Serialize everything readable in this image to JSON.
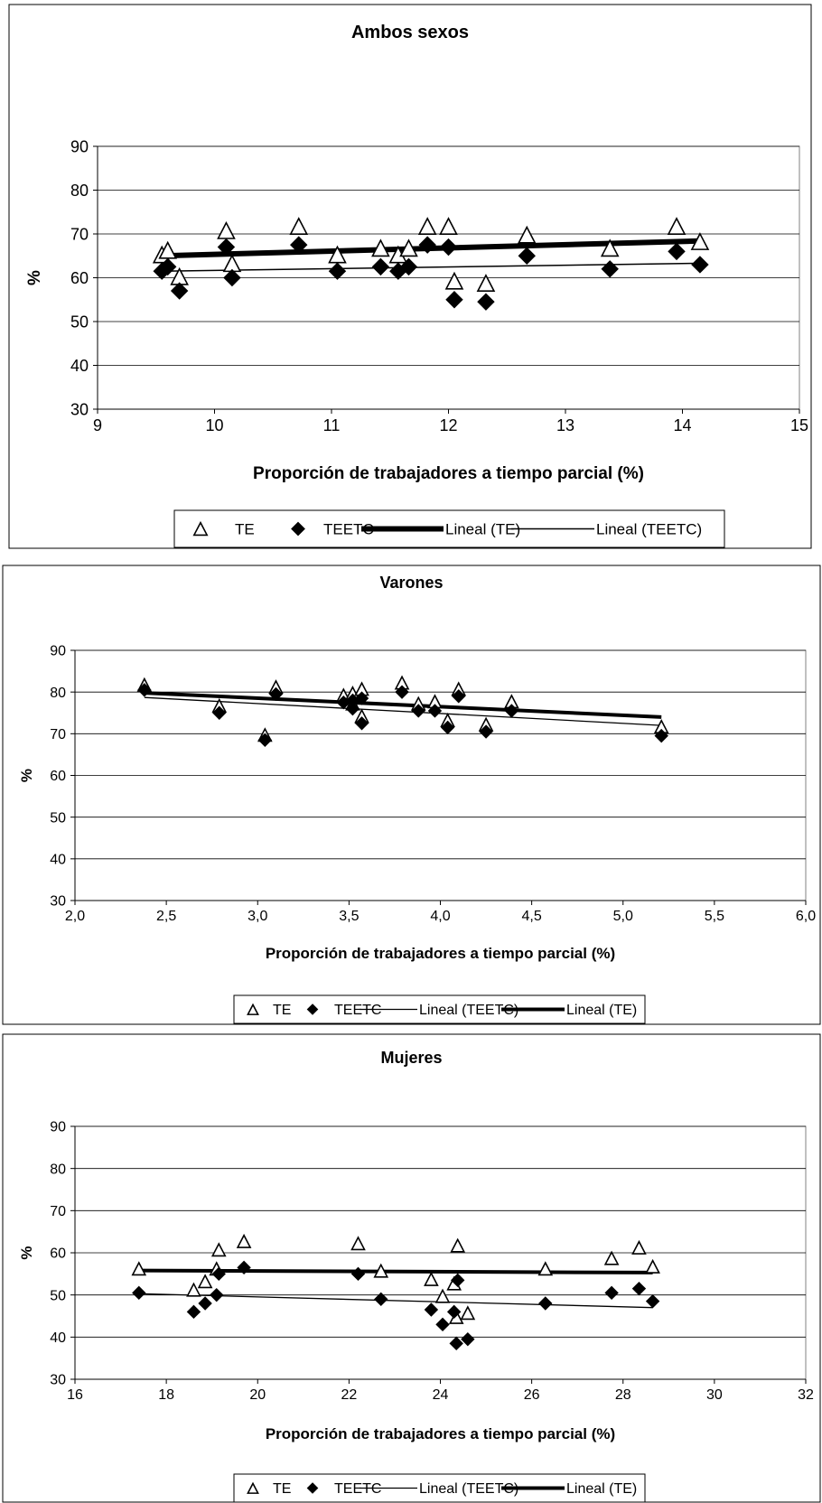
{
  "chart_data": [
    {
      "type": "scatter",
      "title": "Ambos sexos",
      "xlabel": "Proporción de trabajadores a tiempo parcial (%)",
      "ylabel": "%",
      "xlim": [
        9,
        15
      ],
      "ylim": [
        30,
        90
      ],
      "x_ticks": [
        "9",
        "10",
        "11",
        "12",
        "13",
        "14",
        "15"
      ],
      "y_ticks": [
        "30",
        "40",
        "50",
        "60",
        "70",
        "80",
        "90"
      ],
      "grid": true,
      "legend_position": "bottom",
      "series": [
        {
          "name": "TE",
          "marker": "triangle",
          "points": [
            [
              9.55,
              65.0
            ],
            [
              9.6,
              66.0
            ],
            [
              9.7,
              60.0
            ],
            [
              10.1,
              70.5
            ],
            [
              10.15,
              63.0
            ],
            [
              10.72,
              71.5
            ],
            [
              11.05,
              65.0
            ],
            [
              11.42,
              66.5
            ],
            [
              11.57,
              65.0
            ],
            [
              11.66,
              66.5
            ],
            [
              11.82,
              71.5
            ],
            [
              12.0,
              71.5
            ],
            [
              12.05,
              59.0
            ],
            [
              12.32,
              58.5
            ],
            [
              12.67,
              69.5
            ],
            [
              13.38,
              66.5
            ],
            [
              13.95,
              71.5
            ],
            [
              14.15,
              68.0
            ]
          ]
        },
        {
          "name": "TEETC",
          "marker": "diamond",
          "points": [
            [
              9.55,
              61.5
            ],
            [
              9.6,
              62.5
            ],
            [
              9.7,
              57.0
            ],
            [
              10.1,
              67.0
            ],
            [
              10.15,
              60.0
            ],
            [
              10.72,
              67.5
            ],
            [
              11.05,
              61.5
            ],
            [
              11.42,
              62.5
            ],
            [
              11.57,
              61.5
            ],
            [
              11.66,
              62.5
            ],
            [
              11.82,
              67.5
            ],
            [
              12.0,
              67.0
            ],
            [
              12.05,
              55.0
            ],
            [
              12.32,
              54.5
            ],
            [
              12.67,
              65.0
            ],
            [
              13.38,
              62.0
            ],
            [
              13.95,
              66.0
            ],
            [
              14.15,
              63.0
            ]
          ]
        },
        {
          "name": "Lineal (TE)",
          "type": "line",
          "weight": "thick",
          "points": [
            [
              9.55,
              65.0
            ],
            [
              14.15,
              68.4
            ]
          ]
        },
        {
          "name": "Lineal (TEETC)",
          "type": "line",
          "weight": "thin",
          "points": [
            [
              9.55,
              61.5
            ],
            [
              14.15,
              63.3
            ]
          ]
        }
      ],
      "legend": [
        "TE",
        "TEETC",
        "Lineal (TE)",
        "Lineal (TEETC)"
      ]
    },
    {
      "type": "scatter",
      "title": "Varones",
      "xlabel": "Proporción de trabajadores a tiempo parcial (%)",
      "ylabel": "%",
      "xlim": [
        2.0,
        6.0
      ],
      "ylim": [
        30,
        90
      ],
      "x_ticks": [
        "2,0",
        "2,5",
        "3,0",
        "3,5",
        "4,0",
        "4,5",
        "5,0",
        "5,5",
        "6,0"
      ],
      "y_ticks": [
        "30",
        "40",
        "50",
        "60",
        "70",
        "80",
        "90"
      ],
      "grid": true,
      "legend_position": "bottom",
      "series": [
        {
          "name": "TE",
          "marker": "triangle",
          "points": [
            [
              2.38,
              81.5
            ],
            [
              2.79,
              76.5
            ],
            [
              3.04,
              69.5
            ],
            [
              3.1,
              81.0
            ],
            [
              3.47,
              79.0
            ],
            [
              3.52,
              79.5
            ],
            [
              3.52,
              77.0
            ],
            [
              3.57,
              80.5
            ],
            [
              3.57,
              74.0
            ],
            [
              3.79,
              82.0
            ],
            [
              3.88,
              77.0
            ],
            [
              3.97,
              77.5
            ],
            [
              4.04,
              73.0
            ],
            [
              4.1,
              80.5
            ],
            [
              4.25,
              72.0
            ],
            [
              4.39,
              77.5
            ],
            [
              5.21,
              71.5
            ]
          ]
        },
        {
          "name": "TEETC",
          "marker": "diamond",
          "points": [
            [
              2.38,
              80.5
            ],
            [
              2.79,
              75.0
            ],
            [
              3.04,
              68.5
            ],
            [
              3.1,
              79.5
            ],
            [
              3.47,
              77.5
            ],
            [
              3.52,
              78.0
            ],
            [
              3.52,
              76.0
            ],
            [
              3.57,
              78.5
            ],
            [
              3.57,
              72.5
            ],
            [
              3.79,
              80.0
            ],
            [
              3.88,
              75.5
            ],
            [
              3.97,
              75.5
            ],
            [
              4.04,
              71.5
            ],
            [
              4.1,
              79.0
            ],
            [
              4.25,
              70.5
            ],
            [
              4.39,
              75.5
            ],
            [
              5.21,
              69.5
            ]
          ]
        },
        {
          "name": "Lineal (TEETC)",
          "type": "line",
          "weight": "thin",
          "points": [
            [
              2.38,
              78.7
            ],
            [
              5.21,
              72.0
            ]
          ]
        },
        {
          "name": "Lineal (TE)",
          "type": "line",
          "weight": "thick",
          "points": [
            [
              2.38,
              79.8
            ],
            [
              5.21,
              74.0
            ]
          ]
        }
      ],
      "legend": [
        "TE",
        "TEETC",
        "Lineal (TEETC)",
        "Lineal (TE)"
      ]
    },
    {
      "type": "scatter",
      "title": "Mujeres",
      "xlabel": "Proporción de trabajadores a tiempo parcial (%)",
      "ylabel": "%",
      "xlim": [
        16,
        32
      ],
      "ylim": [
        30,
        90
      ],
      "x_ticks": [
        "16",
        "18",
        "20",
        "22",
        "24",
        "26",
        "28",
        "30",
        "32"
      ],
      "y_ticks": [
        "30",
        "40",
        "50",
        "60",
        "70",
        "80",
        "90"
      ],
      "grid": true,
      "legend_position": "bottom",
      "series": [
        {
          "name": "TE",
          "marker": "triangle",
          "points": [
            [
              17.4,
              56.0
            ],
            [
              18.6,
              51.0
            ],
            [
              18.85,
              53.0
            ],
            [
              19.1,
              56.0
            ],
            [
              19.15,
              60.5
            ],
            [
              19.7,
              62.5
            ],
            [
              22.2,
              62.0
            ],
            [
              22.7,
              55.5
            ],
            [
              23.8,
              53.5
            ],
            [
              24.05,
              49.5
            ],
            [
              24.3,
              52.5
            ],
            [
              24.35,
              44.5
            ],
            [
              24.38,
              61.5
            ],
            [
              24.6,
              45.5
            ],
            [
              26.3,
              56.0
            ],
            [
              27.75,
              58.5
            ],
            [
              28.35,
              61.0
            ],
            [
              28.65,
              56.5
            ]
          ]
        },
        {
          "name": "TEETC",
          "marker": "diamond",
          "points": [
            [
              17.4,
              50.5
            ],
            [
              18.6,
              46.0
            ],
            [
              18.85,
              48.0
            ],
            [
              19.1,
              50.0
            ],
            [
              19.15,
              55.0
            ],
            [
              19.7,
              56.5
            ],
            [
              22.2,
              55.0
            ],
            [
              22.7,
              49.0
            ],
            [
              23.8,
              46.5
            ],
            [
              24.05,
              43.0
            ],
            [
              24.3,
              46.0
            ],
            [
              24.35,
              38.5
            ],
            [
              24.38,
              53.5
            ],
            [
              24.6,
              39.5
            ],
            [
              26.3,
              48.0
            ],
            [
              27.75,
              50.5
            ],
            [
              28.35,
              51.5
            ],
            [
              28.65,
              48.5
            ]
          ]
        },
        {
          "name": "Lineal (TEETC)",
          "type": "line",
          "weight": "thin",
          "points": [
            [
              17.4,
              50.3
            ],
            [
              28.65,
              47.0
            ]
          ]
        },
        {
          "name": "Lineal (TE)",
          "type": "line",
          "weight": "thick",
          "points": [
            [
              17.4,
              55.8
            ],
            [
              28.65,
              55.3
            ]
          ]
        }
      ],
      "legend": [
        "TE",
        "TEETC",
        "Lineal (TEETC)",
        "Lineal (TE)"
      ]
    }
  ]
}
